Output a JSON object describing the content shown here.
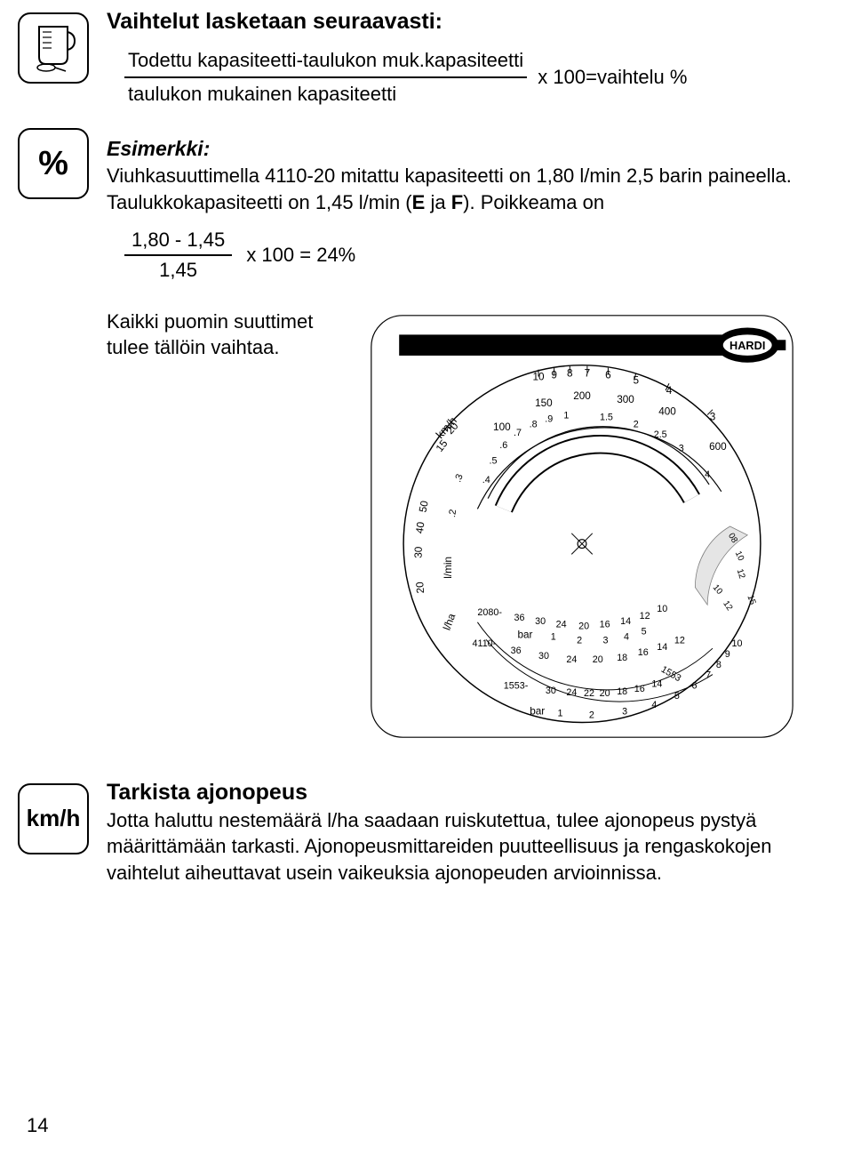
{
  "section1": {
    "title": "Vaihtelut lasketaan seuraavasti:",
    "formula": {
      "numerator": "Todettu kapasiteetti-taulukon muk.kapasiteetti",
      "denominator": "taulukon mukainen kapasiteetti",
      "tail": "x  100=vaihtelu %"
    }
  },
  "example": {
    "icon_label": "%",
    "label": "Esimerkki:",
    "text": "Viuhkasuuttimella 4110-20 mitattu kapasiteetti on 1,80 l/min 2,5 barin paineella. Taulukkokapasiteetti on 1,45 l/min (E ja F). Poikkeama on",
    "formula": {
      "numerator": "1,80 - 1,45",
      "denominator": "1,45",
      "tail": "x  100 = 24%"
    },
    "advice": "Kaikki puomin suuttimet tulee tällöin vaihtaa."
  },
  "dial": {
    "brand": "HARDI",
    "outer_scale_label": "km/h",
    "outer_scale_values": [
      "20",
      "30",
      "40",
      "50",
      "15",
      "20"
    ],
    "top_numbers": [
      "10",
      "9",
      "8",
      "7",
      "6",
      "5",
      "4",
      "3"
    ],
    "arc_values_outer": [
      "100",
      "150",
      "200",
      "300",
      "400",
      "600"
    ],
    "arc_values_inner": [
      ".5",
      ".6",
      ".7",
      ".8",
      ".9",
      "1",
      "1.5",
      "2",
      "2.5",
      "3",
      "4"
    ],
    "left_label_lmin": "l/min",
    "left_label_lha": "l/ha",
    "nozzle_rows": [
      {
        "label": "2080-",
        "vals": [
          "36",
          "30",
          "24",
          "20",
          "16",
          "14",
          "12",
          "10"
        ]
      },
      {
        "label": "4110-",
        "vals": [
          "36",
          "30",
          "24",
          "20",
          "18",
          "16",
          "14",
          "12"
        ]
      },
      {
        "label": "1553-",
        "vals": [
          "30",
          "24",
          "22",
          "20",
          "18",
          "16",
          "14",
          "12"
        ]
      }
    ],
    "bar_label": "bar",
    "bar_values_mid": [
      "1",
      "2",
      "3",
      "4",
      "5"
    ],
    "bar_values_bottom": [
      "1",
      "2",
      "3",
      "4",
      "5",
      "6",
      "7",
      "8",
      "9",
      "10"
    ],
    "extra_label": "1553",
    "right_small": [
      "10",
      "12",
      "14",
      "08",
      "10",
      "12",
      "15"
    ]
  },
  "section2": {
    "icon_label": "km/h",
    "title": "Tarkista  ajonopeus",
    "text": "Jotta haluttu nestemäärä  l/ha saadaan ruiskutettua, tulee ajonopeus pystyä määrittämään tarkasti. Ajonopeusmittareiden puutteellisuus ja rengaskokojen vaihtelut aiheuttavat usein vaikeuksia ajonopeuden arvioinnissa."
  },
  "page_number": "14"
}
